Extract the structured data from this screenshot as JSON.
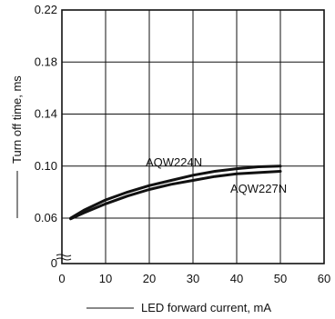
{
  "chart_data": {
    "type": "line",
    "xlabel": "LED forward current, mA",
    "ylabel": "Turn off time, ms",
    "xlim": [
      0,
      60
    ],
    "ylim": [
      0,
      0.22
    ],
    "y_axis_break": true,
    "grid": true,
    "x_ticks": [
      "0",
      "10",
      "20",
      "30",
      "40",
      "50",
      "60"
    ],
    "y_ticks": [
      "0",
      "0.06",
      "0.10",
      "0.14",
      "0.18",
      "0.22"
    ],
    "series": [
      {
        "name": "AQW224N",
        "x": [
          2,
          5,
          10,
          15,
          20,
          25,
          30,
          35,
          40,
          45,
          50
        ],
        "y": [
          0.06,
          0.066,
          0.074,
          0.08,
          0.085,
          0.089,
          0.093,
          0.096,
          0.098,
          0.0995,
          0.1
        ]
      },
      {
        "name": "AQW227N",
        "x": [
          2,
          5,
          10,
          15,
          20,
          25,
          30,
          35,
          40,
          45,
          50
        ],
        "y": [
          0.059,
          0.064,
          0.071,
          0.077,
          0.082,
          0.086,
          0.089,
          0.092,
          0.094,
          0.095,
          0.096
        ]
      }
    ]
  }
}
